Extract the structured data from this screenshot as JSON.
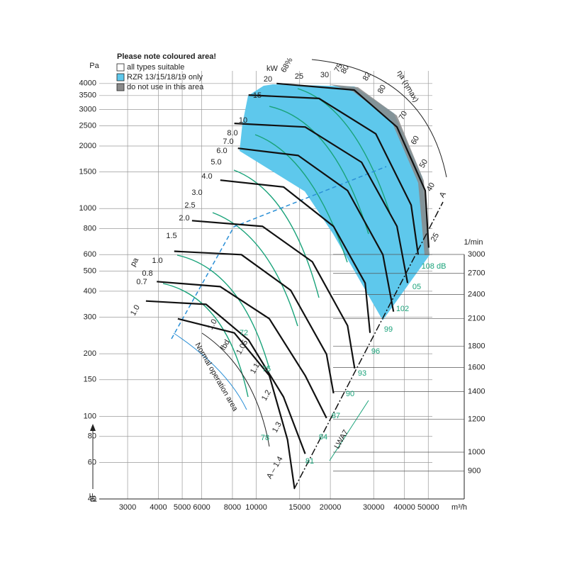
{
  "chart_data": {
    "type": "line",
    "ylabel": "pF",
    "y_unit": "Pa",
    "x_unit": "m³/h",
    "y2_unit": "1/min",
    "log_x": true,
    "log_y": true,
    "log_y2": true,
    "grid": true,
    "xlim": [
      2300,
      70000
    ],
    "xticks": [
      3000,
      4000,
      5000,
      6000,
      8000,
      10000,
      15000,
      20000,
      30000,
      40000,
      50000
    ],
    "ylim": [
      40,
      4600
    ],
    "yticks": [
      40,
      60,
      80,
      100,
      150,
      200,
      300,
      400,
      500,
      600,
      800,
      1000,
      1500,
      2000,
      2500,
      3000,
      3500,
      4000
    ],
    "y2lim": [
      771,
      3000
    ],
    "y2ticks": [
      900,
      1000,
      1200,
      1400,
      1600,
      1800,
      2100,
      2400,
      2700,
      3000
    ],
    "legend": {
      "title": "Please note coloured area!",
      "entries": [
        {
          "name": "all types suitable",
          "color": "#ffffff"
        },
        {
          "name": "RZR 13/15/18/19 only",
          "color": "#5ec8ec"
        },
        {
          "name": "do not use in this area",
          "color": "#8a8a8a"
        }
      ]
    },
    "series": [
      {
        "color": "#111111",
        "x": [
          12100,
          25000,
          37300,
          48600,
          50200
        ],
        "values": [
          4000,
          3720,
          2470,
          1220,
          648
        ]
      },
      {
        "color": "#111111",
        "x": [
          9300,
          18000,
          30600,
          42600,
          45500
        ],
        "values": [
          3520,
          3390,
          2290,
          1040,
          600
        ]
      },
      {
        "color": "#111111",
        "x": [
          8140,
          15800,
          26800,
          37300,
          41200
        ],
        "values": [
          2570,
          2470,
          1670,
          821,
          438
        ]
      },
      {
        "color": "#111111",
        "x": [
          8420,
          14800,
          23500,
          32700,
          36100
        ],
        "values": [
          1950,
          1800,
          1220,
          600,
          319
        ]
      },
      {
        "color": "#111111",
        "x": [
          7140,
          12900,
          20600,
          27700,
          29000
        ],
        "values": [
          1370,
          1270,
          821,
          438,
          252
        ]
      },
      {
        "color": "#111111",
        "x": [
          5480,
          10600,
          16900,
          23500,
          25100
        ],
        "values": [
          875,
          821,
          554,
          273,
          170
        ]
      },
      {
        "color": "#111111",
        "x": [
          4640,
          8700,
          13800,
          19300,
          20600
        ],
        "values": [
          623,
          600,
          404,
          199,
          129
        ]
      },
      {
        "color": "#111111",
        "x": [
          3940,
          7140,
          11300,
          15800,
          19300
        ],
        "values": [
          445,
          421,
          295,
          157,
          98
        ]
      },
      {
        "color": "#111111",
        "x": [
          3560,
          6250,
          9300,
          12900,
          15800
        ],
        "values": [
          359,
          346,
          233,
          124,
          66
        ]
      },
      {
        "color": "#111111",
        "x": [
          4800,
          8140,
          11300,
          13400,
          14300
        ],
        "values": [
          295,
          252,
          157,
          77,
          45
        ]
      }
    ],
    "power_labels": [
      "1.0",
      "0.7",
      "0.8",
      "1.0",
      "1.5",
      "2.0",
      "2.5",
      "3.0",
      "4.0",
      "5.0",
      "6.0",
      "7.0",
      "8.0",
      "10",
      "15",
      "20",
      "25",
      "30",
      "kW"
    ],
    "efficiency_labels": [
      "68%",
      "75",
      "80",
      "82",
      "80",
      "70",
      "60",
      "50",
      "40",
      "25",
      "ηa (ηmax)"
    ],
    "sound_labels": [
      "72",
      "75",
      "78",
      "81",
      "84",
      "87",
      "90",
      "93",
      "96",
      "99",
      "102",
      "05",
      "108 dB"
    ],
    "factor_labels": [
      "1.0",
      "1.05",
      "1.1",
      "1.2",
      "1.3",
      "fbd",
      "Normal operation area",
      "A – 1.4",
      "A",
      "pa",
      "LWA7"
    ]
  }
}
